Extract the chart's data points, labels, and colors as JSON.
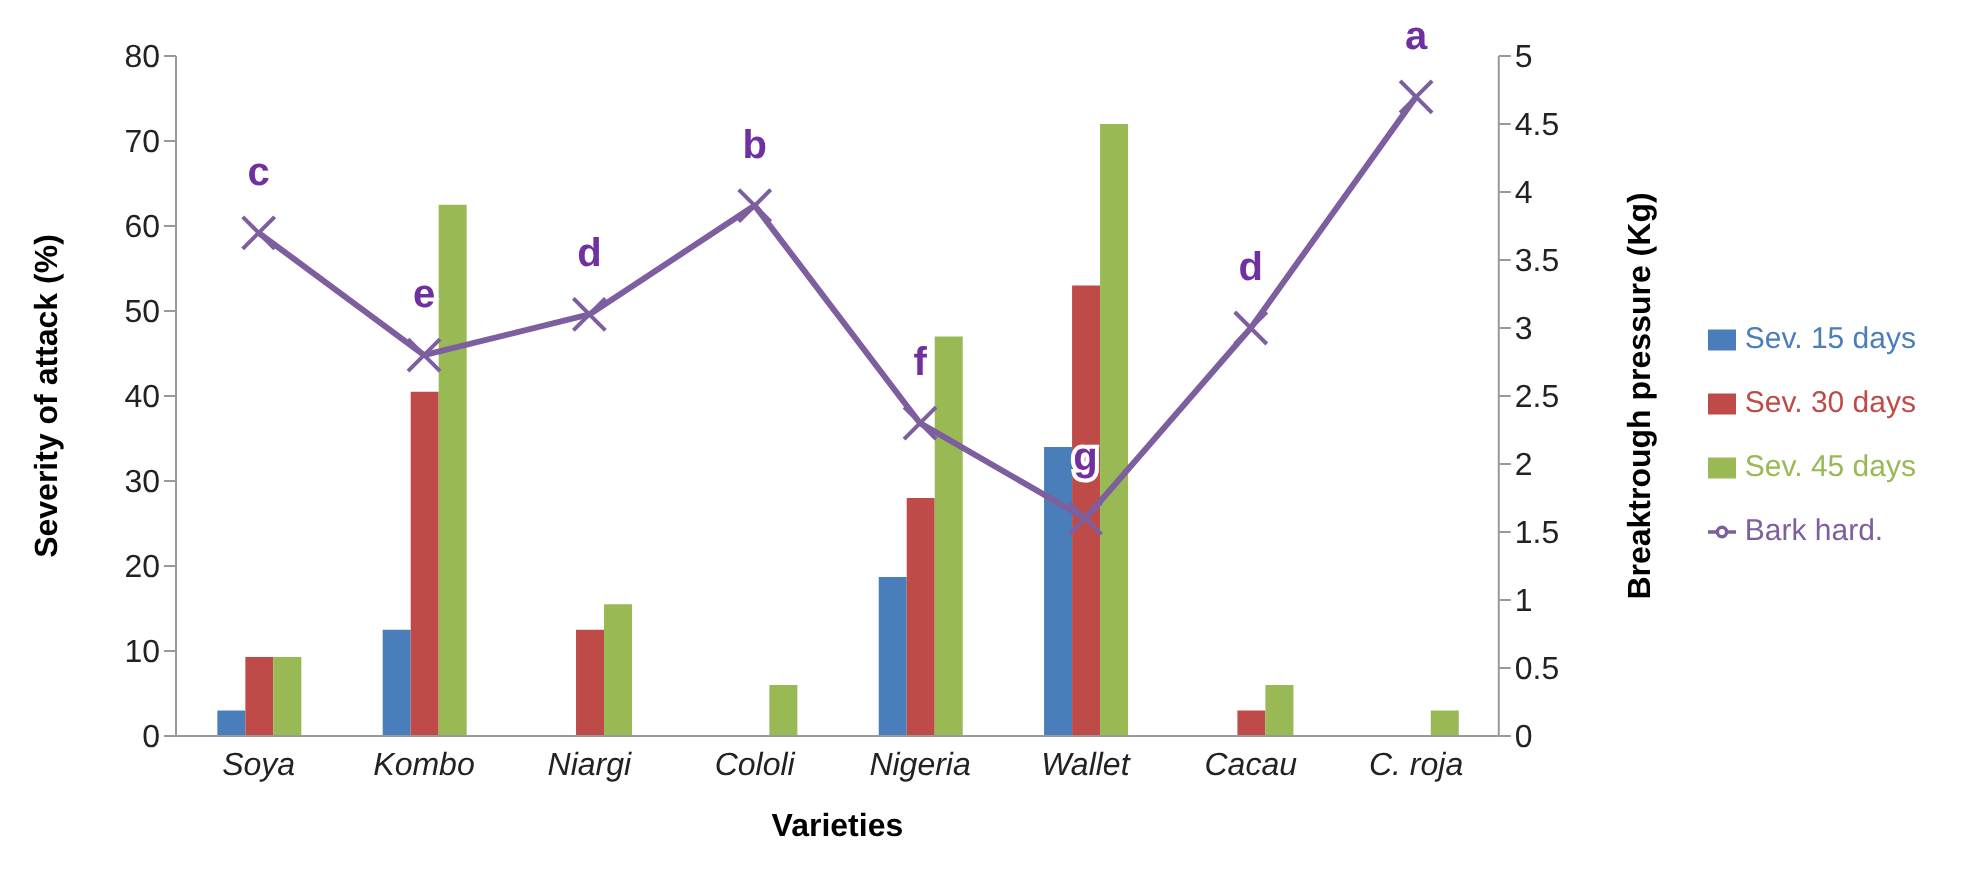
{
  "chart_data": {
    "type": "bar",
    "xlabel": "Varieties",
    "ylabel": "Severity of attack (%)",
    "y2label": "Breaktrough pressure (Kg)",
    "categories": [
      "Soya",
      "Kombo",
      "Niargi",
      "Cololi",
      "Nigeria",
      "Wallet",
      "Cacau",
      "C. roja"
    ],
    "series": [
      {
        "name": "Sev. 15 days",
        "color": "#4a7ebb",
        "values": [
          3,
          12.5,
          0,
          0,
          18.7,
          34,
          0,
          0
        ]
      },
      {
        "name": "Sev. 30 days",
        "color": "#be4b48",
        "values": [
          9.3,
          40.5,
          12.5,
          0,
          28,
          53,
          3,
          0
        ]
      },
      {
        "name": "Sev. 45 days",
        "color": "#98b954",
        "values": [
          9.3,
          62.5,
          15.5,
          6,
          47,
          72,
          6,
          3
        ]
      },
      {
        "name": "Bark hard.",
        "type": "line",
        "axis": "y2",
        "color": "#7d5fa0",
        "marker": "cross",
        "values": [
          3.7,
          2.8,
          3.1,
          3.9,
          2.3,
          1.6,
          3.0,
          4.7
        ]
      }
    ],
    "ylim": [
      0,
      80
    ],
    "yticks": [
      0,
      10,
      20,
      30,
      40,
      50,
      60,
      70,
      80
    ],
    "y2lim": [
      0,
      5
    ],
    "y2ticks": [
      0,
      0.5,
      1,
      1.5,
      2,
      2.5,
      3,
      3.5,
      4,
      4.5,
      5
    ],
    "grid": false,
    "legend": "right",
    "annotations": [
      "c",
      "e",
      "d",
      "b",
      "f",
      "g",
      "d",
      "a"
    ]
  }
}
